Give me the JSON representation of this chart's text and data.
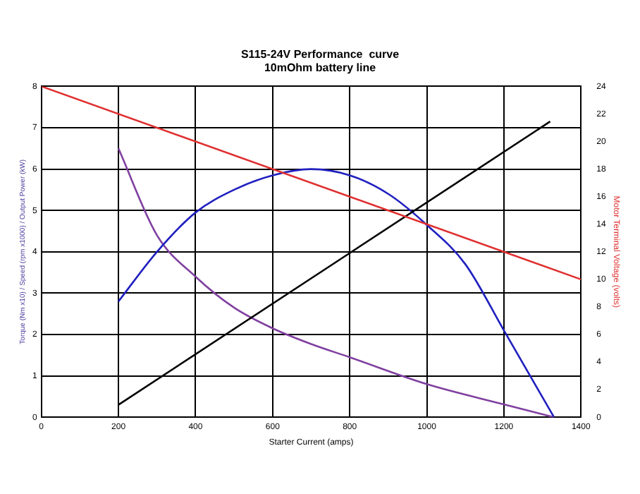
{
  "chart_data": {
    "type": "line",
    "title": [
      "S115-24V Performance  curve",
      "10mOhm battery line"
    ],
    "xlabel": "Starter Current (amps)",
    "ylabel": "Torque (Nm x10) / Speed (rpm x1000) / Output Power (kW)",
    "y2label": "Motor Terminal Voltage (volts)",
    "series": [
      {
        "color": "#e03030",
        "axis": "y2",
        "x": [
          0,
          1400
        ],
        "values": [
          24,
          10
        ]
      },
      {
        "color": "#000000",
        "x": [
          200,
          1320
        ],
        "values": [
          0.3,
          7.15
        ]
      },
      {
        "color": "#2020c0",
        "x": [
          200,
          300,
          400,
          500,
          600,
          700,
          800,
          900,
          1000,
          1100,
          1200,
          1330
        ],
        "values": [
          2.8,
          4.0,
          4.95,
          5.5,
          5.85,
          6.0,
          5.85,
          5.4,
          4.65,
          3.7,
          2.1,
          0
        ]
      },
      {
        "color": "#8040a0",
        "x": [
          200,
          300,
          400,
          500,
          600,
          700,
          800,
          1000,
          1200,
          1330
        ],
        "values": [
          6.5,
          4.4,
          3.4,
          2.65,
          2.15,
          1.77,
          1.45,
          0.8,
          0.31,
          0
        ]
      }
    ],
    "xlim": [
      0,
      1400
    ],
    "xticks": [
      0,
      200,
      400,
      600,
      800,
      1000,
      1200,
      1400
    ],
    "ylim": [
      0,
      8
    ],
    "yticks": [
      0,
      1,
      2,
      3,
      4,
      5,
      6,
      7,
      8
    ],
    "y2lim": [
      0,
      24
    ],
    "y2ticks": [
      0,
      2,
      4,
      6,
      8,
      10,
      12,
      14,
      16,
      18,
      20,
      22,
      24
    ],
    "grid": true,
    "legend": false,
    "marker": "none",
    "line_style": "solid"
  }
}
